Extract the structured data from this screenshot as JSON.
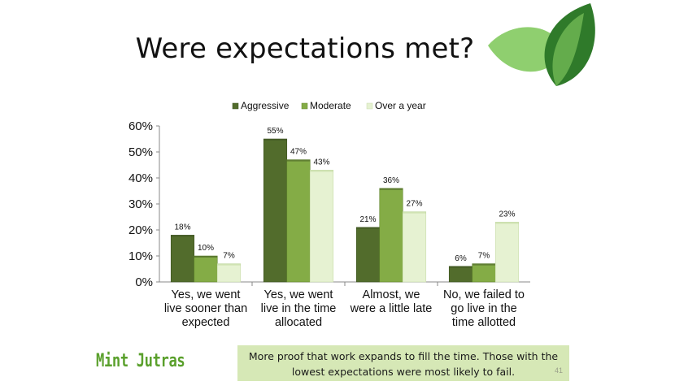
{
  "slide": {
    "title": "Were expectations met?",
    "callout_text": "More proof that work expands to fill the time. Those with the lowest expectations were most likely to fail.",
    "page_number": "41",
    "logo_text": "Mint Jutras"
  },
  "colors": {
    "aggressive": "#526c2c",
    "moderate": "#84ac46",
    "over_a_year": "#e6f2d2",
    "callout_bg": "#d6e8b6",
    "leaf_dark": "#3c7a2c",
    "leaf_light": "#8fcf6f"
  },
  "chart_data": {
    "type": "bar",
    "title": "",
    "xlabel": "",
    "ylabel": "",
    "ylim": [
      0,
      60
    ],
    "y_ticks": [
      "0%",
      "10%",
      "20%",
      "30%",
      "40%",
      "50%",
      "60%"
    ],
    "grid": false,
    "legend_position": "top",
    "categories": [
      [
        "Yes, we went",
        "live sooner than",
        "expected"
      ],
      [
        "Yes, we went",
        "live in the time",
        "allocated"
      ],
      [
        "Almost, we",
        "were a little late"
      ],
      [
        "No, we failed to",
        "go live in the",
        "time allotted"
      ]
    ],
    "series": [
      {
        "name": "Aggressive",
        "values": [
          18,
          55,
          21,
          6
        ],
        "labels": [
          "18%",
          "55%",
          "21%",
          "6%"
        ]
      },
      {
        "name": "Moderate",
        "values": [
          10,
          47,
          36,
          7
        ],
        "labels": [
          "10%",
          "47%",
          "36%",
          "7%"
        ]
      },
      {
        "name": "Over a year",
        "values": [
          7,
          43,
          27,
          23
        ],
        "labels": [
          "7%",
          "43%",
          "27%",
          "23%"
        ]
      }
    ]
  }
}
